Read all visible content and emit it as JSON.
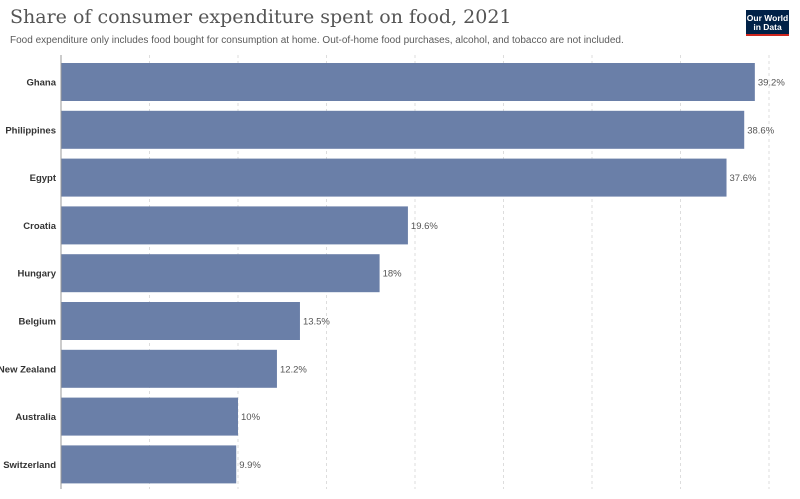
{
  "chart_data": {
    "type": "bar",
    "orientation": "horizontal",
    "title": "Share of consumer expenditure spent on food, 2021",
    "subtitle": "Food expenditure only includes food bought for consumption at home. Out-of-home food purchases, alcohol, and tobacco are not included.",
    "categories": [
      "Ghana",
      "Philippines",
      "Egypt",
      "Croatia",
      "Hungary",
      "Belgium",
      "New Zealand",
      "Australia",
      "Switzerland"
    ],
    "values": [
      39.2,
      38.6,
      37.6,
      19.6,
      18,
      13.5,
      12.2,
      10,
      9.9
    ],
    "value_labels": [
      "39.2%",
      "38.6%",
      "37.6%",
      "19.6%",
      "18%",
      "13.5%",
      "12.2%",
      "10%",
      "9.9%"
    ],
    "xlim": [
      0,
      40
    ],
    "grid": "vertical dashed",
    "bar_color": "#6a7fa8"
  },
  "logo": {
    "line1": "Our World",
    "line2": "in Data"
  }
}
